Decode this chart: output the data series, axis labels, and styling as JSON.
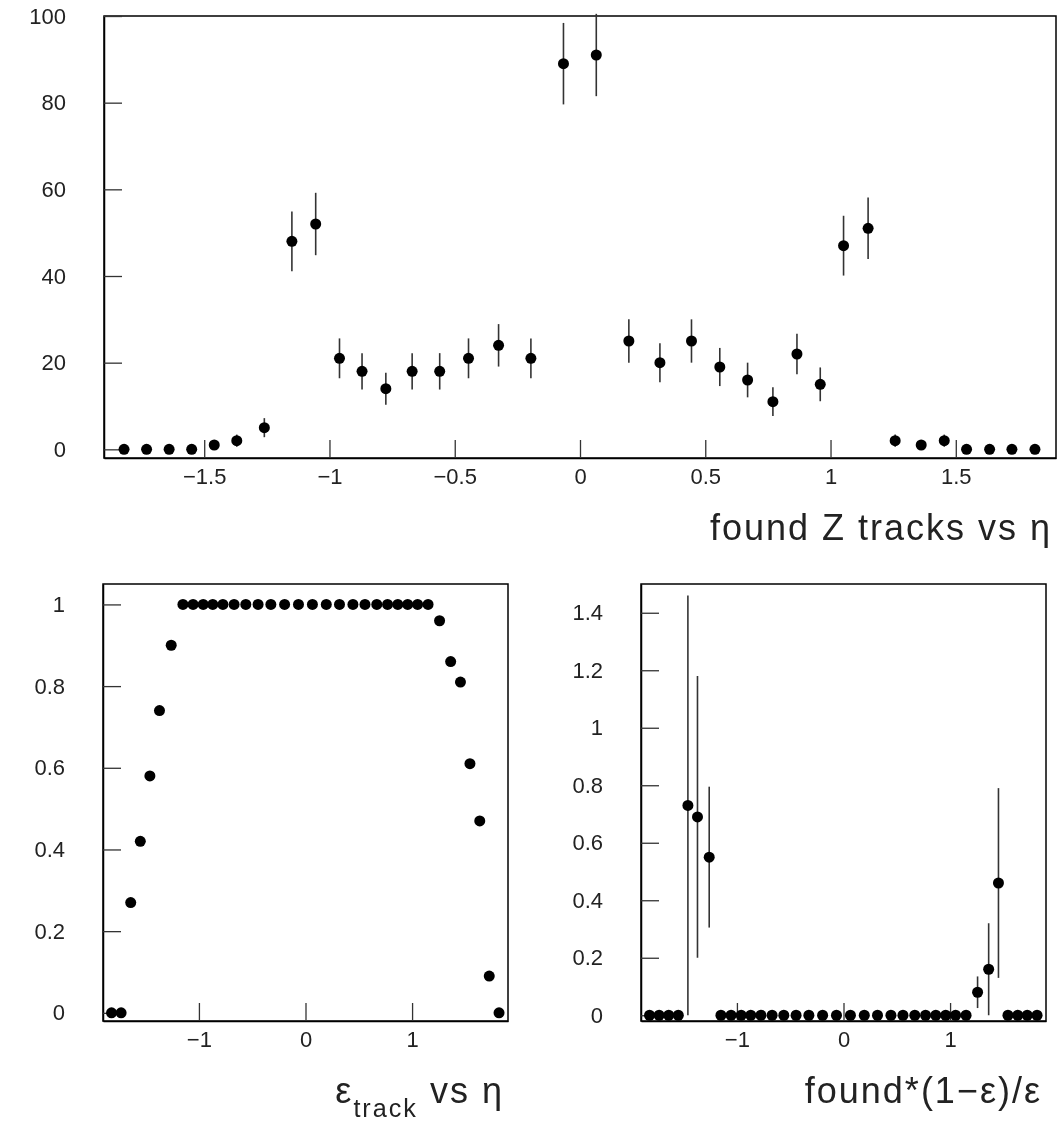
{
  "chart_data": [
    {
      "type": "scatter",
      "xlabel": "found Z tracks vs η",
      "marker": "circle",
      "xlim": [
        -1.9,
        1.9
      ],
      "ylim": [
        -2,
        100
      ],
      "xticks": [
        {
          "value": -1.5,
          "label": "−1.5"
        },
        {
          "value": -1,
          "label": "−1"
        },
        {
          "value": -0.5,
          "label": "−0.5"
        },
        0,
        0.5,
        1,
        1.5
      ],
      "yticks": [
        0,
        20,
        40,
        60,
        80,
        100
      ],
      "series": [
        {
          "color": "#000000",
          "x": [
            -1.82,
            -1.73,
            -1.64,
            -1.55,
            -1.46,
            -1.37,
            -1.26,
            -1.15,
            -1.055,
            -0.96,
            -0.87,
            -0.775,
            -0.67,
            -0.56,
            -0.445,
            -0.325,
            -0.196,
            -0.066,
            0.065,
            0.195,
            0.319,
            0.445,
            0.558,
            0.669,
            0.77,
            0.866,
            0.959,
            1.052,
            1.15,
            1.258,
            1.362,
            1.454,
            1.543,
            1.635,
            1.724,
            1.816
          ],
          "values": [
            0,
            0,
            0,
            0,
            1,
            2,
            5,
            48,
            52,
            21,
            18,
            14,
            18,
            18,
            21,
            24,
            21,
            89,
            91,
            25,
            20,
            25,
            19,
            16,
            11,
            22,
            15,
            47,
            51,
            2,
            1,
            2,
            0,
            0,
            0,
            0
          ],
          "errors": [
            null,
            null,
            null,
            null,
            1,
            1.4,
            2.2,
            6.9,
            7.2,
            4.6,
            4.2,
            3.7,
            4.2,
            4.2,
            4.6,
            4.9,
            4.6,
            9.4,
            9.5,
            5,
            4.5,
            5,
            4.4,
            4,
            3.3,
            4.7,
            3.9,
            6.9,
            7.1,
            1.4,
            1,
            1.4,
            null,
            null,
            null,
            null
          ]
        }
      ]
    },
    {
      "type": "scatter",
      "xlabel": "ε$_{track}$ vs η",
      "marker": "circle",
      "xlim": [
        -1.9,
        1.9
      ],
      "ylim": [
        -0.02,
        1.05
      ],
      "xticks": [
        {
          "value": -1,
          "label": "−1"
        },
        0,
        1
      ],
      "yticks": [
        0,
        0.2,
        0.4,
        0.6,
        0.8,
        1
      ],
      "series": [
        {
          "color": "#000000",
          "x": [
            -1.82,
            -1.73,
            -1.64,
            -1.55,
            -1.46,
            -1.37,
            -1.26,
            -1.15,
            -1.055,
            -0.96,
            -0.87,
            -0.775,
            -0.67,
            -0.56,
            -0.445,
            -0.325,
            -0.196,
            -0.066,
            0.065,
            0.195,
            0.319,
            0.445,
            0.558,
            0.669,
            0.77,
            0.866,
            0.959,
            1.052,
            1.15,
            1.258,
            1.362,
            1.454,
            1.543,
            1.635,
            1.724,
            1.816
          ],
          "values": [
            0,
            0,
            0.27,
            0.42,
            0.58,
            0.74,
            0.9,
            1,
            1,
            1,
            1,
            1,
            1,
            1,
            1,
            1,
            1,
            1,
            1,
            1,
            1,
            1,
            1,
            1,
            1,
            1,
            1,
            1,
            1,
            0.96,
            0.86,
            0.81,
            0.61,
            0.47,
            0.09,
            0
          ]
        }
      ]
    },
    {
      "type": "scatter",
      "xlabel": "found*(1−ε)/ε",
      "marker": "circle",
      "xlim": [
        -1.9,
        1.9
      ],
      "ylim": [
        -0.02,
        1.5
      ],
      "xticks": [
        {
          "value": -1,
          "label": "−1"
        },
        0,
        1
      ],
      "yticks": [
        0,
        0.2,
        0.4,
        0.6,
        0.8,
        1,
        1.2,
        1.4
      ],
      "series": [
        {
          "color": "#000000",
          "x": [
            -1.82,
            -1.73,
            -1.64,
            -1.55,
            -1.46,
            -1.37,
            -1.26,
            -1.15,
            -1.055,
            -0.96,
            -0.87,
            -0.775,
            -0.67,
            -0.56,
            -0.445,
            -0.325,
            -0.196,
            -0.066,
            0.065,
            0.195,
            0.319,
            0.445,
            0.558,
            0.669,
            0.77,
            0.866,
            0.959,
            1.052,
            1.15,
            1.258,
            1.362,
            1.454,
            1.543,
            1.635,
            1.724,
            1.816
          ],
          "values": [
            0,
            0,
            0,
            0,
            0.73,
            0.69,
            0.55,
            0,
            0,
            0,
            0,
            0,
            0,
            0,
            0,
            0,
            0,
            0,
            0,
            0,
            0,
            0,
            0,
            0,
            0,
            0,
            0,
            0,
            0,
            0.08,
            0.16,
            0.46,
            0,
            0,
            0,
            0
          ],
          "errors": [
            null,
            null,
            null,
            null,
            0.73,
            0.49,
            0.245,
            null,
            null,
            null,
            null,
            null,
            null,
            null,
            null,
            null,
            null,
            null,
            null,
            null,
            null,
            null,
            null,
            null,
            null,
            null,
            null,
            null,
            null,
            0.055,
            0.16,
            0.33,
            null,
            null,
            null,
            null
          ]
        }
      ]
    }
  ]
}
